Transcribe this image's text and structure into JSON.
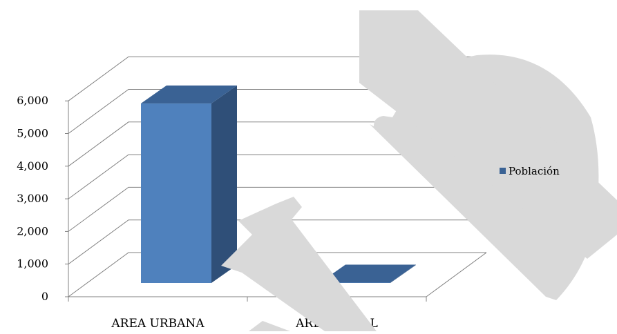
{
  "chart_data": {
    "type": "bar",
    "categories": [
      "AREA URBANA",
      "AREA RURAL"
    ],
    "series": [
      {
        "name": "Población",
        "values": [
          5500,
          10
        ]
      }
    ],
    "ylim": [
      0,
      6000
    ],
    "yticks": [
      "0",
      "1,000",
      "2,000",
      "3,000",
      "4,000",
      "5,000",
      "6,000"
    ],
    "title": "",
    "xlabel": "",
    "ylabel": "",
    "grid": true,
    "legend_position": "right",
    "style": "3d-column",
    "colors": {
      "bar_front": "#4f81bd",
      "bar_top": "#3a6294",
      "bar_side": "#2f4f78",
      "grid": "#808080",
      "watermark": "#d9d9d9"
    }
  },
  "watermark": {
    "type": "logo",
    "letters": "P"
  }
}
